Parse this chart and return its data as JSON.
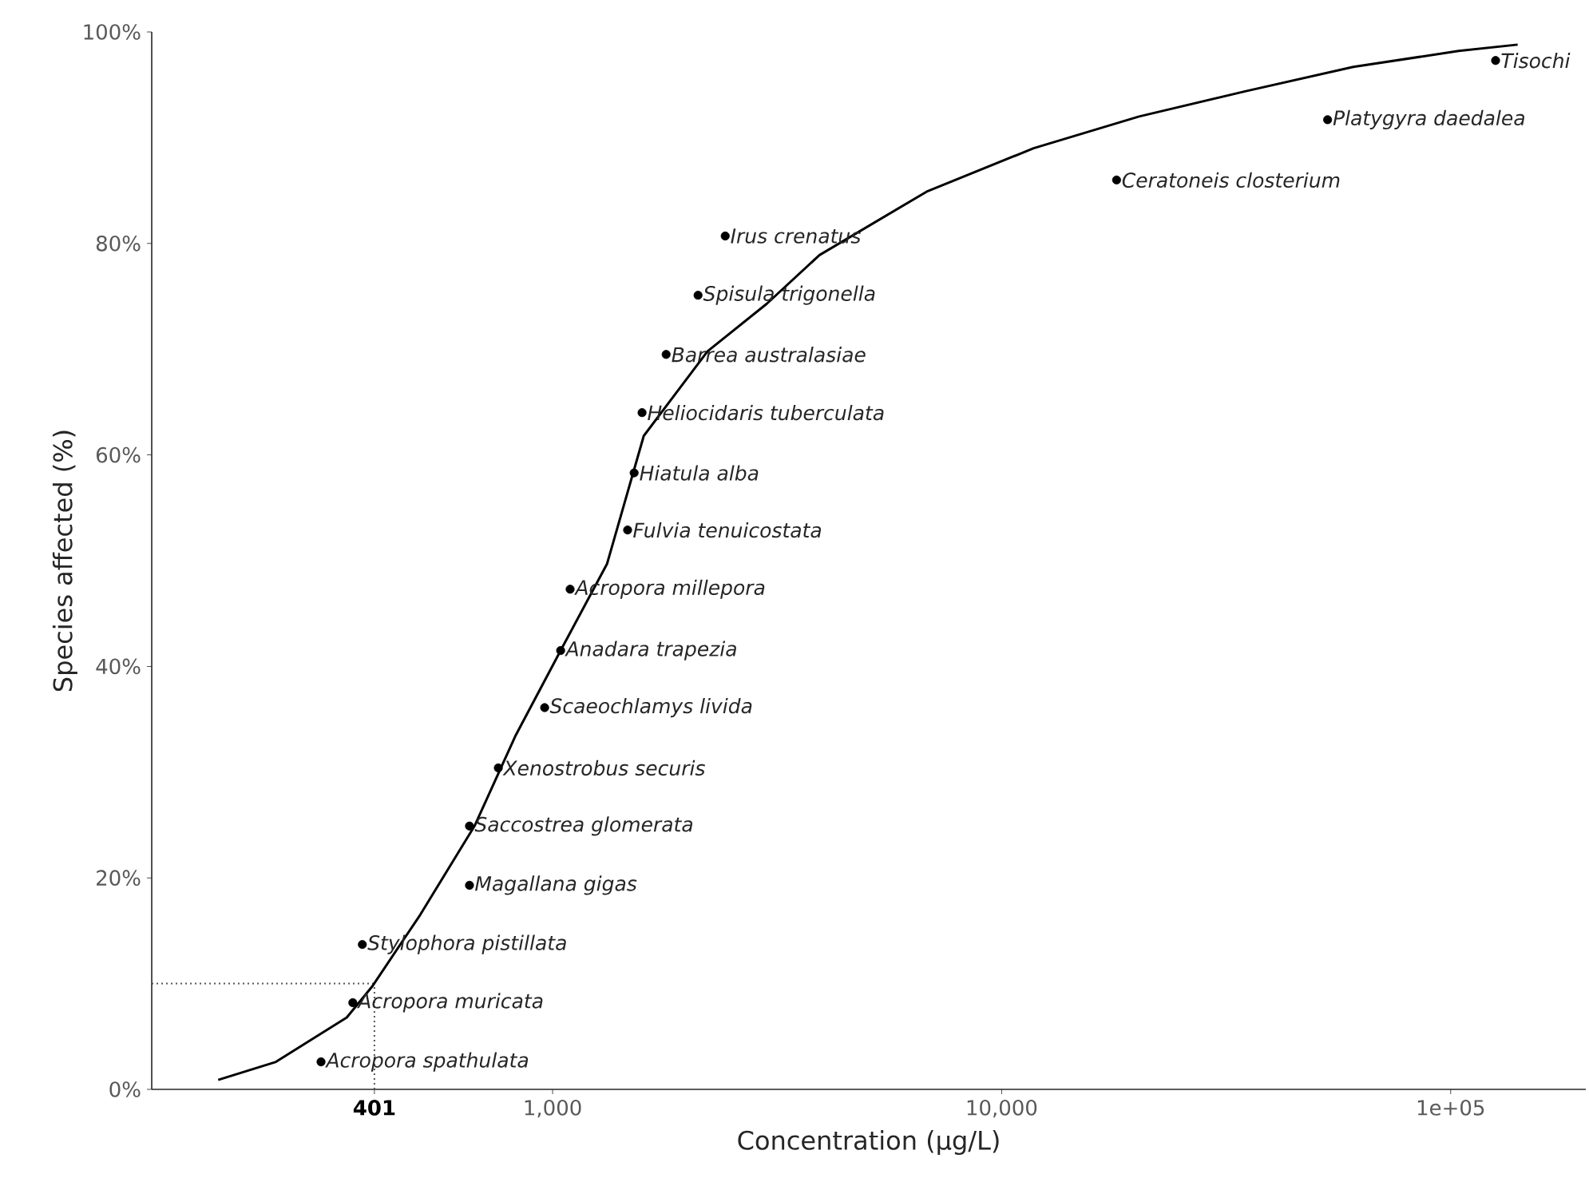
{
  "chart_data": {
    "type": "scatter",
    "xlabel": "Concentration (µg/L)",
    "ylabel": "Species affected (%)",
    "log": "x",
    "xlim": [
      128,
      200000
    ],
    "ylim": [
      0,
      100
    ],
    "xticks": [
      {
        "value": 401,
        "label": "401"
      },
      {
        "value": 1000,
        "label": "1,000"
      },
      {
        "value": 10000,
        "label": "10,000"
      },
      {
        "value": 100000,
        "label": "1e+05"
      }
    ],
    "yticks": [
      {
        "value": 0,
        "label": "0%"
      },
      {
        "value": 20,
        "label": "20%"
      },
      {
        "value": 40,
        "label": "40%"
      },
      {
        "value": 60,
        "label": "60%"
      },
      {
        "value": 80,
        "label": "80%"
      },
      {
        "value": 100,
        "label": "100%"
      }
    ],
    "grid": false,
    "series": [
      {
        "color": "#000000",
        "marker": "circle",
        "x": [
          305,
          359,
          377,
          653,
          653,
          757,
          960,
          1042,
          1094,
          1469,
          1519,
          1582,
          1790,
          2108,
          2423,
          18030,
          53200,
          125900
        ],
        "values": [
          2.6,
          8.2,
          13.7,
          19.3,
          24.9,
          30.4,
          36.1,
          41.5,
          47.3,
          52.9,
          58.3,
          64.0,
          69.5,
          75.1,
          80.7,
          86.0,
          91.7,
          97.3
        ]
      },
      {
        "type": "line",
        "color": "#000000",
        "marker": "none",
        "line_style": "solid",
        "x": [
          180,
          242,
          348,
          396,
          507,
          670,
          828,
          1042,
          1322,
          1596,
          2213,
          3000,
          3930,
          6810,
          11780,
          20230,
          35000,
          60700,
          104200,
          141000
        ],
        "values": [
          0.9,
          2.6,
          6.8,
          9.7,
          16.5,
          24.9,
          33.5,
          41.5,
          49.7,
          61.8,
          69.8,
          74.3,
          78.9,
          84.9,
          89.0,
          92.0,
          94.4,
          96.7,
          98.2,
          98.8
        ]
      }
    ],
    "ref_lines": [
      {
        "axis": "y",
        "value": 10,
        "line_style": "dotted",
        "color": "#555555"
      },
      {
        "axis": "x",
        "value": 401,
        "line_style": "dotted",
        "color": "#555555"
      }
    ],
    "annotations": [
      {
        "text": "Acropora spathulata",
        "x": 305,
        "y": 2.6
      },
      {
        "text": "Acropora muricata",
        "x": 359,
        "y": 8.2
      },
      {
        "text": "Stylophora pistillata",
        "x": 377,
        "y": 13.7
      },
      {
        "text": "Magallana gigas",
        "x": 653,
        "y": 19.3
      },
      {
        "text": "Saccostrea glomerata",
        "x": 653,
        "y": 24.9
      },
      {
        "text": "Xenostrobus securis",
        "x": 757,
        "y": 30.4
      },
      {
        "text": "Scaeochlamys livida",
        "x": 960,
        "y": 36.1
      },
      {
        "text": "Anadara trapezia",
        "x": 1042,
        "y": 41.5
      },
      {
        "text": "Acropora millepora",
        "x": 1094,
        "y": 47.3
      },
      {
        "text": "Fulvia tenuicostata",
        "x": 1469,
        "y": 52.9
      },
      {
        "text": "Hiatula alba",
        "x": 1519,
        "y": 58.3
      },
      {
        "text": "Heliocidaris tuberculata",
        "x": 1582,
        "y": 64.0
      },
      {
        "text": "Barrea australasiae",
        "x": 1790,
        "y": 69.5
      },
      {
        "text": "Spisula trigonella",
        "x": 2108,
        "y": 75.1
      },
      {
        "text": "Irus crenatus",
        "x": 2423,
        "y": 80.7
      },
      {
        "text": "Ceratoneis closterium",
        "x": 18030,
        "y": 86.0
      },
      {
        "text": "Platygyra daedalea",
        "x": 53200,
        "y": 91.7
      },
      {
        "text": "Tisochi",
        "x": 125900,
        "y": 97.3
      }
    ]
  }
}
